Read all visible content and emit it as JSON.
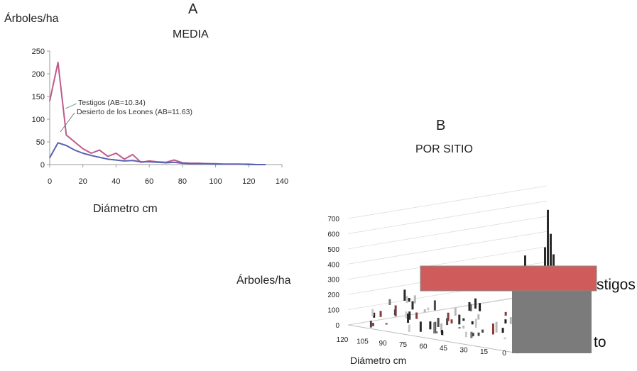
{
  "chart_data": [
    {
      "type": "line",
      "panel_letter": "A",
      "title": "MEDIA",
      "ylabel": "Árboles/ha",
      "xlabel": "Diámetro cm",
      "xlim": [
        0,
        140
      ],
      "ylim": [
        0,
        250
      ],
      "x_ticks": [
        "0",
        "20",
        "40",
        "60",
        "80",
        "100",
        "120",
        "140"
      ],
      "y_ticks": [
        "0",
        "50",
        "100",
        "150",
        "200",
        "250"
      ],
      "grid": false,
      "legend_position": "inline-annotations",
      "series": [
        {
          "name": "Testigos (AB=10.34)",
          "color": "#c05a8a",
          "x": [
            0,
            5,
            10,
            15,
            20,
            25,
            30,
            35,
            40,
            45,
            50,
            55,
            60,
            65,
            70,
            75,
            80,
            85,
            90,
            95,
            100,
            105,
            110,
            115,
            120,
            125,
            130
          ],
          "values": [
            140,
            225,
            65,
            50,
            35,
            25,
            32,
            18,
            25,
            12,
            22,
            5,
            8,
            6,
            5,
            10,
            4,
            3,
            3,
            2,
            2,
            1,
            1,
            1,
            1,
            0,
            0
          ]
        },
        {
          "name": "Desierto de los Leones (AB=11.63)",
          "color": "#5a63b0",
          "x": [
            0,
            5,
            10,
            15,
            20,
            25,
            30,
            35,
            40,
            45,
            50,
            55,
            60,
            65,
            70,
            75,
            80,
            85,
            90,
            95,
            100,
            105,
            110,
            115,
            120,
            125,
            130
          ],
          "values": [
            15,
            48,
            42,
            32,
            25,
            20,
            16,
            12,
            10,
            8,
            9,
            6,
            6,
            5,
            4,
            5,
            3,
            2,
            2,
            2,
            1,
            1,
            1,
            1,
            0,
            0,
            0
          ]
        }
      ]
    },
    {
      "type": "bar",
      "panel_letter": "B",
      "title": "POR SITIO",
      "ylabel": "Árboles/ha",
      "xlabel": "Diámetro cm",
      "ylim": [
        0,
        700
      ],
      "y_ticks": [
        "0",
        "100",
        "200",
        "300",
        "400",
        "500",
        "600",
        "700"
      ],
      "x_ticks": [
        "120",
        "105",
        "90",
        "75",
        "60",
        "45",
        "30",
        "15",
        "0"
      ],
      "legend_entries": [
        "Testigos",
        "Desierto"
      ],
      "legend_visible_text": [
        "stigos",
        "to"
      ],
      "peak_value": 700
    }
  ],
  "colors": {
    "series_a": "#c05a8a",
    "series_b": "#5a63b0",
    "overlay_red": "#cf5b5b",
    "overlay_gray": "#7b7b7b"
  }
}
